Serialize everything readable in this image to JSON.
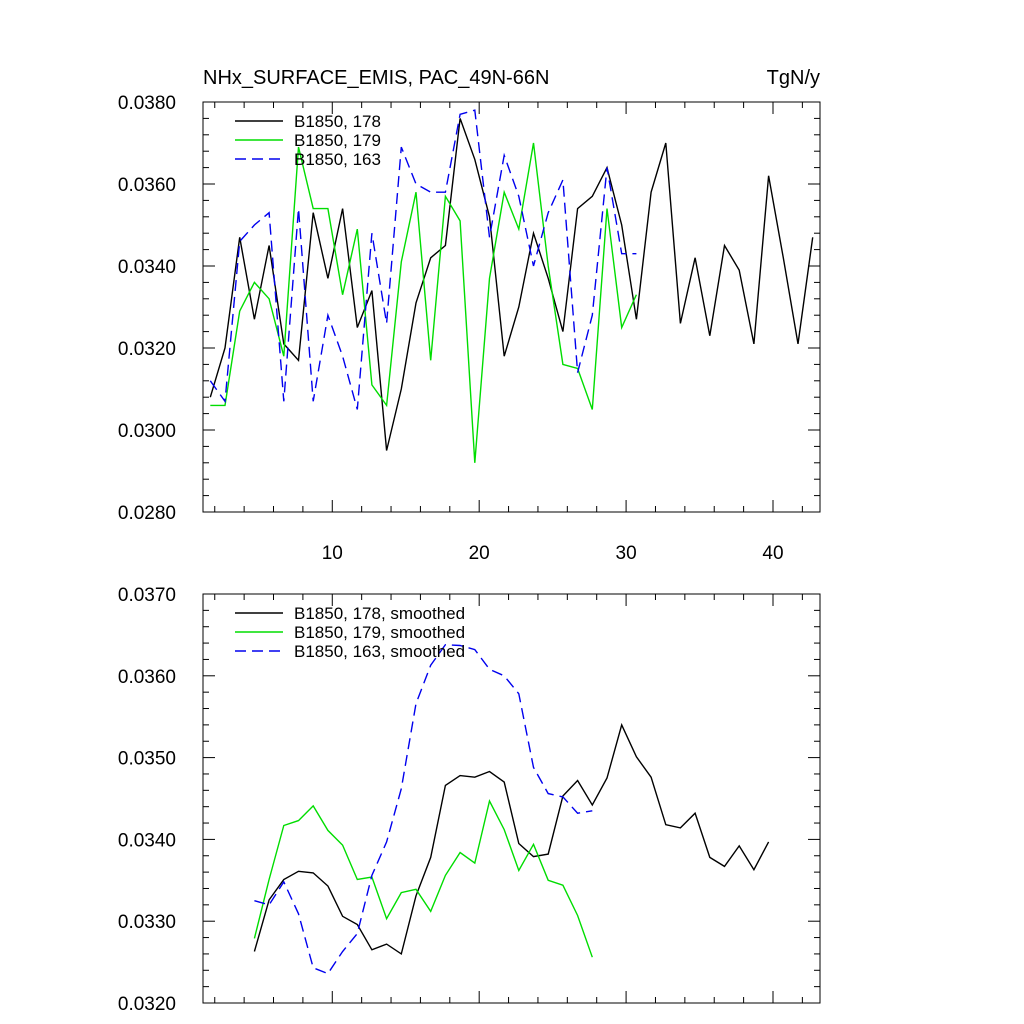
{
  "header": {
    "title": "NHx_SURFACE_EMIS, PAC_49N-66N",
    "units": "TgN/y"
  },
  "chart_data": [
    {
      "type": "line",
      "title": "NHx_SURFACE_EMIS, PAC_49N-66N",
      "units": "TgN/y",
      "xlabel": "",
      "ylabel": "",
      "xlim": [
        1.2,
        43.2
      ],
      "ylim": [
        0.028,
        0.038
      ],
      "x_ticks": [
        10,
        20,
        30,
        40
      ],
      "x_tick_labels": [
        "10",
        "20",
        "30",
        "40"
      ],
      "y_ticks": [
        0.028,
        0.03,
        0.032,
        0.034,
        0.036,
        0.038
      ],
      "y_tick_labels": [
        "0.0280",
        "0.0300",
        "0.0320",
        "0.0340",
        "0.0360",
        "0.0380"
      ],
      "grid": false,
      "legend_position": "top-left",
      "series": [
        {
          "name": "B1850, 178",
          "color": "#000000",
          "dash": "solid",
          "x": [
            1.7,
            2.7,
            3.7,
            4.7,
            5.7,
            6.7,
            7.7,
            8.7,
            9.7,
            10.7,
            11.7,
            12.7,
            13.7,
            14.7,
            15.7,
            16.7,
            17.7,
            18.7,
            19.7,
            20.7,
            21.7,
            22.7,
            23.7,
            24.7,
            25.7,
            26.7,
            27.7,
            28.7,
            29.7,
            30.7,
            31.7,
            32.7,
            33.7,
            34.7,
            35.7,
            36.7,
            37.7,
            38.7,
            39.7,
            40.7,
            41.7,
            42.7
          ],
          "values": [
            0.0308,
            0.032,
            0.0347,
            0.0327,
            0.0345,
            0.0321,
            0.0317,
            0.0353,
            0.0337,
            0.0354,
            0.0325,
            0.0334,
            0.0295,
            0.031,
            0.0331,
            0.0342,
            0.0345,
            0.0376,
            0.0366,
            0.0352,
            0.0318,
            0.033,
            0.0348,
            0.0337,
            0.0324,
            0.0354,
            0.0357,
            0.0364,
            0.035,
            0.0327,
            0.0358,
            0.037,
            0.0326,
            0.0342,
            0.0323,
            0.0345,
            0.0339,
            0.0321,
            0.0362,
            0.0342,
            0.0321,
            0.0347
          ]
        },
        {
          "name": "B1850, 179",
          "color": "#00dd00",
          "dash": "solid",
          "x": [
            1.7,
            2.7,
            3.7,
            4.7,
            5.7,
            6.7,
            7.7,
            8.7,
            9.7,
            10.7,
            11.7,
            12.7,
            13.7,
            14.7,
            15.7,
            16.7,
            17.7,
            18.7,
            19.7,
            20.7,
            21.7,
            22.7,
            23.7,
            24.7,
            25.7,
            26.7,
            27.7,
            28.7,
            29.7,
            30.7
          ],
          "values": [
            0.0306,
            0.0306,
            0.0329,
            0.0336,
            0.0332,
            0.0318,
            0.0369,
            0.0354,
            0.0354,
            0.0333,
            0.0349,
            0.0311,
            0.0306,
            0.0341,
            0.0358,
            0.0317,
            0.0357,
            0.0351,
            0.0292,
            0.0337,
            0.0358,
            0.0349,
            0.037,
            0.034,
            0.0316,
            0.0315,
            0.0305,
            0.0354,
            0.0325,
            0.0333
          ]
        },
        {
          "name": "B1850, 163",
          "color": "#0000ee",
          "dash": "dashed",
          "x": [
            1.7,
            2.7,
            3.7,
            4.7,
            5.7,
            6.7,
            7.7,
            8.7,
            9.7,
            10.7,
            11.7,
            12.7,
            13.7,
            14.7,
            15.7,
            16.7,
            17.7,
            18.7,
            19.7,
            20.7,
            21.7,
            22.7,
            23.7,
            24.7,
            25.7,
            26.7,
            27.7,
            28.7,
            29.7,
            30.7
          ],
          "values": [
            0.0312,
            0.0307,
            0.0346,
            0.035,
            0.0353,
            0.0307,
            0.0354,
            0.0307,
            0.0328,
            0.0318,
            0.0305,
            0.0348,
            0.0326,
            0.0369,
            0.036,
            0.0358,
            0.0358,
            0.0377,
            0.0378,
            0.0347,
            0.0367,
            0.0357,
            0.034,
            0.0353,
            0.0361,
            0.0314,
            0.0328,
            0.0364,
            0.0343,
            0.0343
          ]
        }
      ]
    },
    {
      "type": "line",
      "title": "",
      "xlabel": "",
      "ylabel": "",
      "xlim": [
        1.2,
        43.2
      ],
      "ylim": [
        0.032,
        0.037
      ],
      "x_ticks": [
        10,
        20,
        30,
        40
      ],
      "x_tick_labels": [
        "",
        "",
        "",
        ""
      ],
      "y_ticks": [
        0.032,
        0.033,
        0.034,
        0.035,
        0.036,
        0.037
      ],
      "y_tick_labels": [
        "0.0320",
        "0.0330",
        "0.0340",
        "0.0350",
        "0.0360",
        "0.0370"
      ],
      "grid": false,
      "legend_position": "top-left",
      "series": [
        {
          "name": "B1850, 178, smoothed",
          "color": "#000000",
          "dash": "solid",
          "x": [
            4.7,
            5.7,
            6.7,
            7.7,
            8.7,
            9.7,
            10.7,
            11.7,
            12.7,
            13.7,
            14.7,
            15.7,
            16.7,
            17.7,
            18.7,
            19.7,
            20.7,
            21.7,
            22.7,
            23.7,
            24.7,
            25.7,
            26.7,
            27.7,
            28.7,
            29.7,
            30.7,
            31.7,
            32.7,
            33.7,
            34.7,
            35.7,
            36.7,
            37.7,
            38.7,
            39.7
          ],
          "values": [
            0.03263,
            0.03326,
            0.03351,
            0.03361,
            0.03359,
            0.03343,
            0.03306,
            0.03296,
            0.03265,
            0.03272,
            0.0326,
            0.03331,
            0.03378,
            0.03466,
            0.03478,
            0.03476,
            0.03483,
            0.0347,
            0.03395,
            0.03379,
            0.03382,
            0.03453,
            0.03472,
            0.03442,
            0.03475,
            0.0354,
            0.03501,
            0.03476,
            0.03418,
            0.03414,
            0.03432,
            0.03378,
            0.03367,
            0.03392,
            0.03363,
            0.03397
          ]
        },
        {
          "name": "B1850, 179, smoothed",
          "color": "#00dd00",
          "dash": "solid",
          "x": [
            4.7,
            5.7,
            6.7,
            7.7,
            8.7,
            9.7,
            10.7,
            11.7,
            12.7,
            13.7,
            14.7,
            15.7,
            16.7,
            17.7,
            18.7,
            19.7,
            20.7,
            21.7,
            22.7,
            23.7,
            24.7,
            25.7,
            26.7,
            27.7
          ],
          "values": [
            0.03279,
            0.03351,
            0.03417,
            0.03423,
            0.03441,
            0.03411,
            0.03393,
            0.03351,
            0.03354,
            0.03303,
            0.03335,
            0.03339,
            0.03312,
            0.03356,
            0.03384,
            0.03371,
            0.03447,
            0.03412,
            0.03362,
            0.03394,
            0.0335,
            0.03344,
            0.03307,
            0.03256
          ]
        },
        {
          "name": "B1850, 163, smoothed",
          "color": "#0000ee",
          "dash": "dashed",
          "x": [
            4.7,
            5.7,
            6.7,
            7.7,
            8.7,
            9.7,
            10.7,
            11.7,
            12.7,
            13.7,
            14.7,
            15.7,
            16.7,
            17.7,
            18.7,
            19.7,
            20.7,
            21.7,
            22.7,
            23.7,
            24.7,
            25.7,
            26.7,
            27.7
          ],
          "values": [
            0.03325,
            0.0332,
            0.03348,
            0.03309,
            0.03243,
            0.03236,
            0.03263,
            0.03285,
            0.03356,
            0.03397,
            0.03462,
            0.03566,
            0.03613,
            0.03638,
            0.03637,
            0.03632,
            0.03608,
            0.036,
            0.03578,
            0.03488,
            0.03456,
            0.03452,
            0.03432,
            0.03435
          ]
        }
      ]
    }
  ]
}
